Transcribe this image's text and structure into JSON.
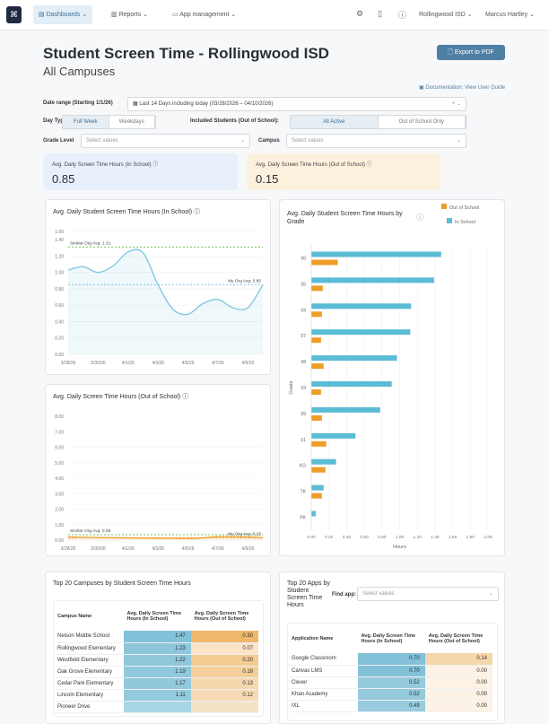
{
  "nav": {
    "items": [
      {
        "label": "Dashboards",
        "active": true
      },
      {
        "label": "Reports"
      },
      {
        "label": "App management"
      }
    ],
    "org": "Rollingwood ISD",
    "user": "Marcus Hartley",
    "icons": [
      "gear-icon",
      "book-icon",
      "help-icon"
    ]
  },
  "header": {
    "title": "Student Screen Time - Rollingwood ISD",
    "subtitle": "All Campuses",
    "export_label": "Export to PDF",
    "doc_link": "Documentation: View User Guide"
  },
  "filters": {
    "date_label": "Date range (Starting 1/1/26)",
    "date_value": "Last 14 Days including today (03/28/2026 – 04/10/2026)",
    "day_type_label": "Day Type",
    "day_type_options": [
      "Full Week",
      "Weekdays"
    ],
    "day_type_selected": "Full Week",
    "included_label": "Included Students (Out of School):",
    "included_options": [
      "All Active",
      "Out of School Only"
    ],
    "included_selected": "All Active",
    "grade_label": "Grade Level",
    "grade_placeholder": "Select values",
    "campus_label": "Campus",
    "campus_placeholder": "Select values"
  },
  "kpis": [
    {
      "label": "Avg. Daily Screen Time Hours (In School)",
      "value": "0.85",
      "color": "#e8f1fb"
    },
    {
      "label": "Avg. Daily Screen Time Hours (Out of School)",
      "value": "0.15",
      "color": "#fcf1dd"
    }
  ],
  "chart_data": [
    {
      "type": "line",
      "title": "Avg. Daily Student Screen Time Hours (In School)",
      "x": [
        "3/28/26",
        "3/29/26",
        "3/30/26",
        "3/31/26",
        "4/1/26",
        "4/2/26",
        "4/3/26",
        "4/4/26",
        "4/5/26",
        "4/6/26",
        "4/7/26",
        "4/8/26",
        "4/9/26",
        "4/10/26"
      ],
      "x_tick_labels": [
        "3/28/26",
        "3/30/26",
        "4/1/26",
        "4/3/26",
        "4/5/26",
        "4/7/26",
        "4/9/26"
      ],
      "values": [
        1.03,
        1.07,
        1.0,
        1.08,
        1.25,
        1.24,
        0.85,
        0.55,
        0.49,
        0.62,
        0.67,
        0.57,
        0.57,
        0.85
      ],
      "ylim": [
        0,
        1.5
      ],
      "y_ticks": [
        "0.00",
        "0.20",
        "0.40",
        "0.60",
        "0.80",
        "1.00",
        "1.20",
        "1.40",
        "1.50"
      ],
      "y_tick_values": [
        0,
        0.2,
        0.4,
        0.6,
        0.8,
        1.0,
        1.2,
        1.4,
        1.5
      ],
      "color": "#7cc6e0",
      "references": [
        {
          "label": "Similar Org Avg: 1.31",
          "value": 1.31,
          "color": "#7cc35a"
        },
        {
          "label": "My Org Avg: 0.85",
          "value": 0.85,
          "color": "#7cc6e0"
        }
      ]
    },
    {
      "type": "line",
      "title": "Avg. Daily Screen Time Hours (Out of School)",
      "x": [
        "3/28/26",
        "3/29/26",
        "3/30/26",
        "3/31/26",
        "4/1/26",
        "4/2/26",
        "4/3/26",
        "4/4/26",
        "4/5/26",
        "4/6/26",
        "4/7/26",
        "4/8/26",
        "4/9/26",
        "4/10/26"
      ],
      "x_tick_labels": [
        "3/28/26",
        "3/30/26",
        "4/1/26",
        "4/3/26",
        "4/5/26",
        "4/7/26",
        "4/9/26"
      ],
      "values": [
        0.2,
        0.18,
        0.16,
        0.15,
        0.14,
        0.13,
        0.12,
        0.12,
        0.1,
        0.14,
        0.22,
        0.21,
        0.2,
        0.15
      ],
      "ylim": [
        0,
        8
      ],
      "y_ticks": [
        "0.00",
        "1.00",
        "2.00",
        "3.00",
        "4.00",
        "5.00",
        "6.00",
        "7.00",
        "8.00"
      ],
      "y_tick_values": [
        0,
        1,
        2,
        3,
        4,
        5,
        6,
        7,
        8
      ],
      "color": "#ef9d27",
      "references": [
        {
          "label": "Similar Org Avg: 0.35",
          "value": 0.35,
          "color": "#7cc35a"
        },
        {
          "label": "My Org Avg: 0.15",
          "value": 0.15,
          "color": "#ef9d27"
        }
      ]
    },
    {
      "type": "bar",
      "orientation": "horizontal",
      "title": "Avg. Daily Student Screen Time Hours by Grade",
      "xlabel": "Hours",
      "ylabel": "Grade",
      "categories": [
        "06",
        "05",
        "04",
        "07",
        "08",
        "03",
        "09",
        "01",
        "KG",
        "TK",
        "PK"
      ],
      "series": [
        {
          "name": "In School",
          "color": "#5bbcd6",
          "values": [
            1.47,
            1.39,
            1.13,
            1.12,
            0.97,
            0.91,
            0.78,
            0.5,
            0.28,
            0.14,
            0.05
          ]
        },
        {
          "name": "Out of School",
          "color": "#ef9d27",
          "values": [
            0.3,
            0.13,
            0.12,
            0.11,
            0.14,
            0.11,
            0.12,
            0.17,
            0.16,
            0.12,
            0
          ]
        }
      ],
      "xlim": [
        0,
        2
      ],
      "x_ticks": [
        "0.00",
        "0.20",
        "0.40",
        "0.60",
        "0.80",
        "1.00",
        "1.20",
        "1.40",
        "1.60",
        "1.80",
        "2.00"
      ],
      "legend": "top-right"
    }
  ],
  "campuses": {
    "title": "Top 20 Campuses by Student Screen Time Hours",
    "columns": [
      "Campus Name",
      "Avg. Daily Screen Time Hours (In School)",
      "Avg. Daily Screen Time Hours (Out of School)"
    ],
    "rows": [
      [
        "Nelson Middle School",
        "1.47",
        "0.30"
      ],
      [
        "Rollingwood Elementary",
        "1.23",
        "0.07"
      ],
      [
        "Westfield Elementary",
        "1.22",
        "0.20"
      ],
      [
        "Oak Grove Elementary",
        "1.19",
        "0.18"
      ],
      [
        "Cedar Park Elementary",
        "1.17",
        "0.13"
      ],
      [
        "Lincoln Elementary",
        "1.11",
        "0.12"
      ],
      [
        "Pioneer Drive",
        "",
        ""
      ]
    ]
  },
  "apps": {
    "title": "Top 20 Apps by Student Screen Time Hours",
    "find_label": "Find app:",
    "find_placeholder": "Select values",
    "columns": [
      "Application Name",
      "Avg. Daily Screen Time Hours (In School)",
      "Avg. Daily Screen Time Hours (Out of School)"
    ],
    "rows": [
      [
        "Google Classroom",
        "0.70",
        "0.14"
      ],
      [
        "Canvas LMS",
        "0.70",
        "0.00"
      ],
      [
        "Clever",
        "0.52",
        "0.00"
      ],
      [
        "Khan Academy",
        "0.52",
        "0.00"
      ],
      [
        "IXL",
        "0.49",
        "0.00"
      ]
    ]
  }
}
